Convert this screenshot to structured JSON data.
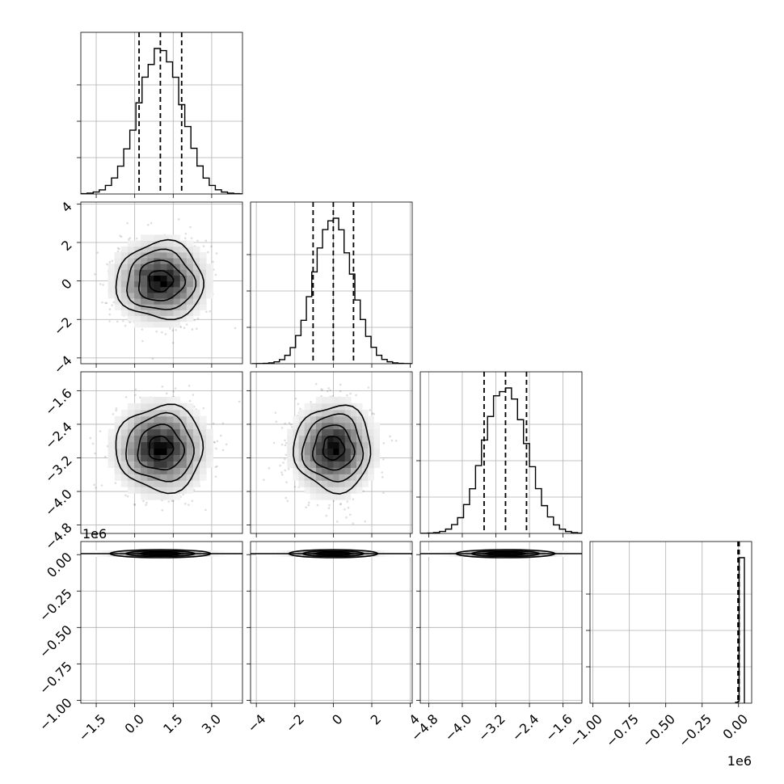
{
  "chart_data": {
    "type": "corner",
    "parameters": [
      {
        "range": [
          -2.1,
          4.2
        ],
        "ticks": [
          -1.5,
          0.0,
          1.5,
          3.0
        ],
        "tick_labels": [
          "−1.5",
          "0.0",
          "1.5",
          "3.0"
        ],
        "mean": 1.0,
        "sigma": 0.85,
        "quantiles": [
          0.17,
          1.0,
          1.83
        ],
        "offset_label": ""
      },
      {
        "range": [
          -4.3,
          4.1
        ],
        "ticks": [
          -4,
          -2,
          0,
          2,
          4
        ],
        "tick_labels": [
          "−4",
          "−2",
          "0",
          "2",
          "4"
        ],
        "mean": 0.0,
        "sigma": 1.0,
        "quantiles": [
          -1.05,
          0.0,
          1.05
        ],
        "offset_label": ""
      },
      {
        "range": [
          -5.0,
          -1.15
        ],
        "ticks": [
          -4.8,
          -4.0,
          -3.2,
          -2.4,
          -1.6
        ],
        "tick_labels": [
          "−4.8",
          "−4.0",
          "−3.2",
          "−2.4",
          "−1.6"
        ],
        "mean": -2.97,
        "sigma": 0.51,
        "quantiles": [
          -3.48,
          -2.97,
          -2.47
        ],
        "offset_label": ""
      },
      {
        "range": [
          -1.02,
          0.09
        ],
        "ticks": [
          -1.0,
          -0.75,
          -0.5,
          -0.25,
          0.0
        ],
        "tick_labels": [
          "−1.00",
          "−0.75",
          "−0.50",
          "−0.25",
          "0.00"
        ],
        "quantiles": [
          -0.004,
          0.0,
          0.004
        ],
        "offset_label": "1e6"
      }
    ],
    "y_tick_params": [
      null,
      1,
      2,
      3
    ],
    "grid": true,
    "points_per_scatter": 1300
  }
}
